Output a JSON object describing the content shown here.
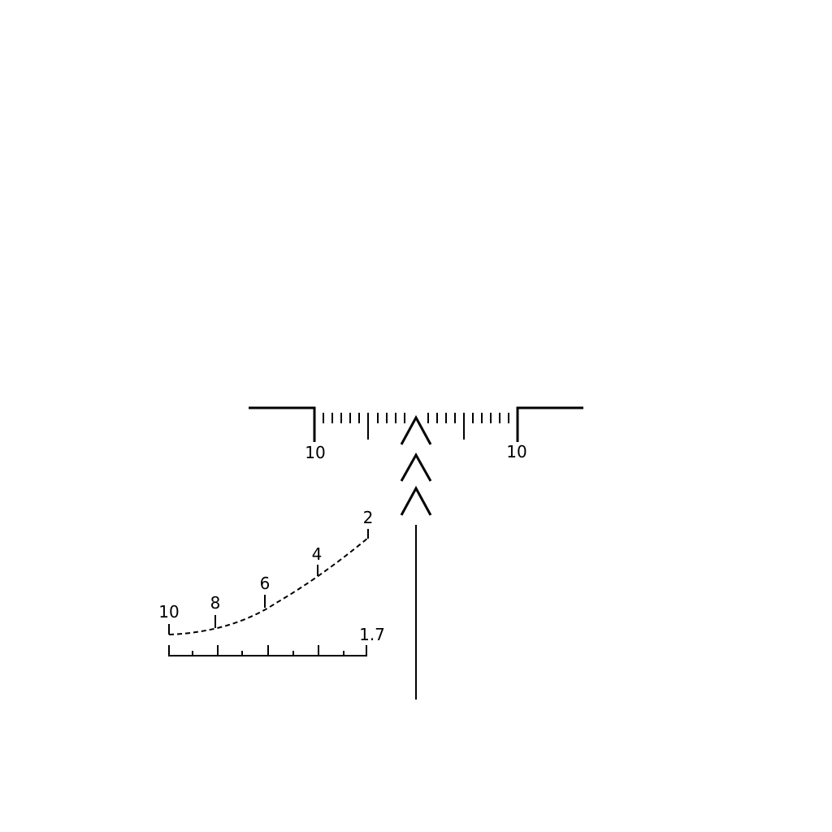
{
  "reticle": {
    "line_color": "#000000",
    "background_color": "#ffffff",
    "horizontal_scale": {
      "left_label": "10",
      "right_label": "10"
    },
    "range_curve": {
      "labels": [
        "10",
        "8",
        "6",
        "4",
        "2"
      ]
    },
    "stadia_scale": {
      "end_label": "1.7"
    }
  }
}
